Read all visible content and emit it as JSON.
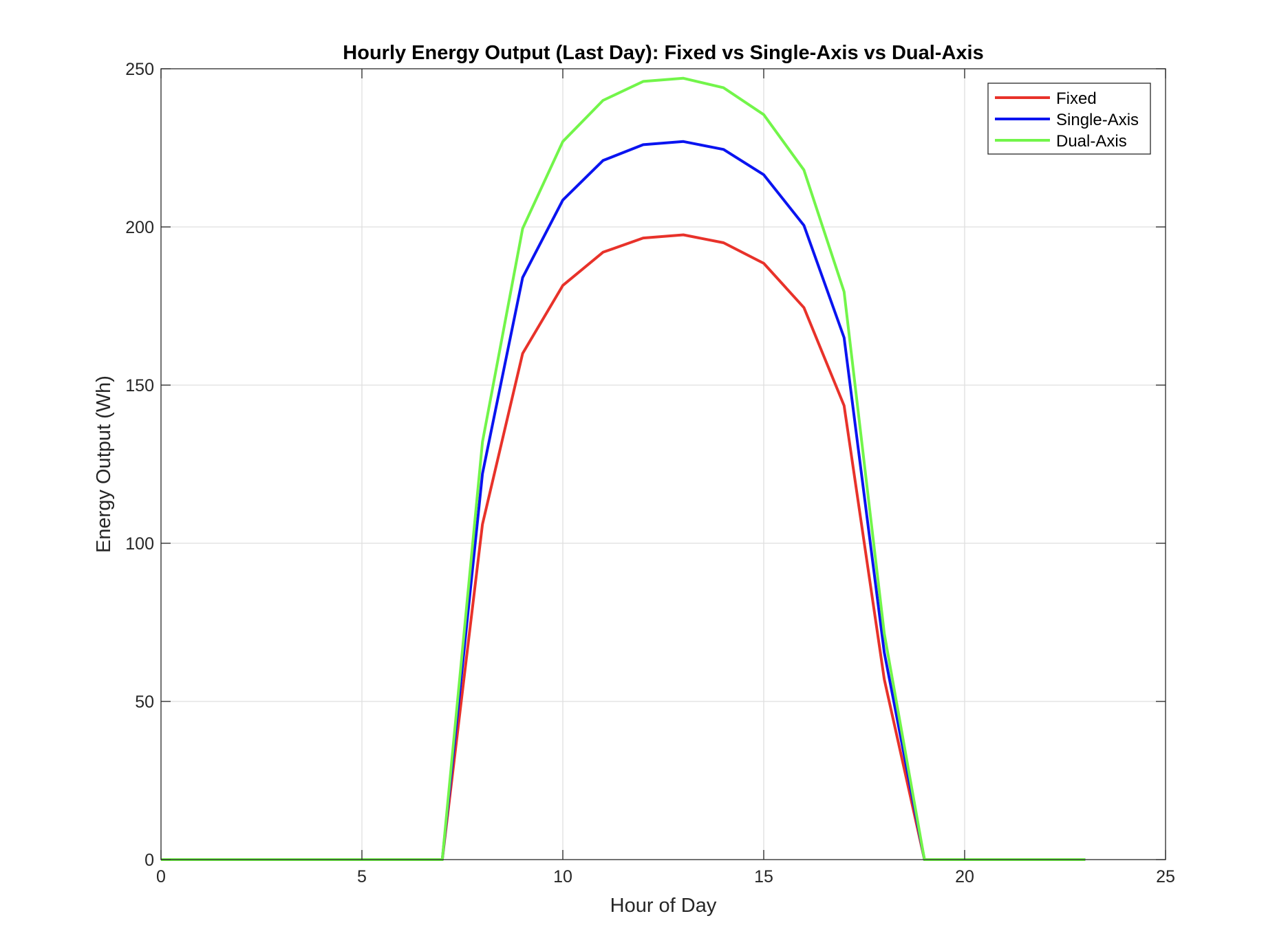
{
  "chart_data": {
    "type": "line",
    "title": "Hourly Energy Output (Last Day): Fixed vs Single-Axis vs Dual-Axis",
    "xlabel": "Hour of Day",
    "ylabel": "Energy Output (Wh)",
    "xlim": [
      0,
      25
    ],
    "ylim": [
      0,
      250
    ],
    "xticks": [
      0,
      5,
      10,
      15,
      20,
      25
    ],
    "yticks": [
      0,
      50,
      100,
      150,
      200,
      250
    ],
    "grid": true,
    "legend_position": "top-right",
    "x": [
      0,
      1,
      2,
      3,
      4,
      5,
      6,
      7,
      8,
      9,
      10,
      11,
      12,
      13,
      14,
      15,
      16,
      17,
      18,
      19,
      20,
      21,
      22,
      23
    ],
    "series": [
      {
        "name": "Fixed",
        "color": "#e8322a",
        "values": [
          0,
          0,
          0,
          0,
          0,
          0,
          0,
          0,
          106,
          160,
          181.5,
          192,
          196.5,
          197.5,
          195,
          188.5,
          174.5,
          143.5,
          57,
          0,
          0,
          0,
          0,
          0
        ]
      },
      {
        "name": "Single-Axis",
        "color": "#0a14f0",
        "values": [
          0,
          0,
          0,
          0,
          0,
          0,
          0,
          0,
          122,
          184,
          208.5,
          221,
          226,
          227,
          224.5,
          216.5,
          200.5,
          165,
          65.5,
          0,
          0,
          0,
          0,
          0
        ]
      },
      {
        "name": "Dual-Axis",
        "color": "#72f54a",
        "values": [
          0,
          0,
          0,
          0,
          0,
          0,
          0,
          0,
          132,
          199.5,
          227,
          240,
          246,
          247,
          244,
          235.5,
          218,
          179.5,
          71.5,
          0,
          0,
          0,
          0,
          0
        ]
      }
    ]
  }
}
